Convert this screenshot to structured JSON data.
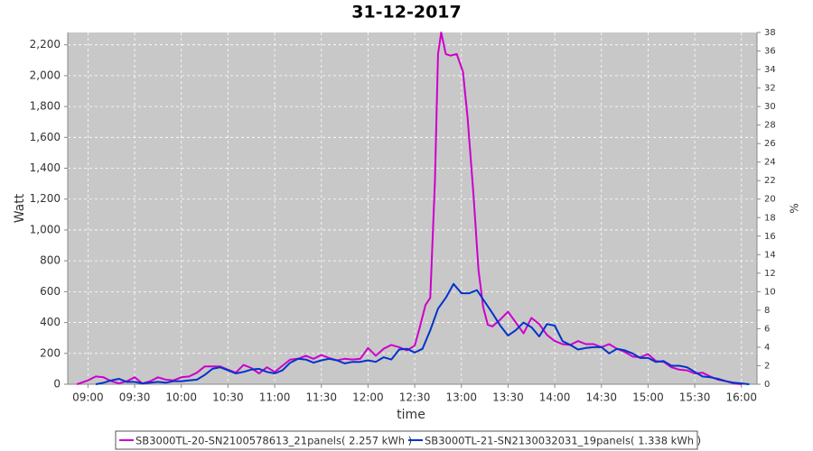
{
  "chart_data": {
    "type": "line",
    "title": "31-12-2017",
    "x_label": "time",
    "y_label": "Watt",
    "y2_label": "%",
    "xlim": [
      "08:47",
      "16:10"
    ],
    "xticks": [
      "09:00",
      "09:30",
      "10:00",
      "10:30",
      "11:00",
      "11:30",
      "12:00",
      "12:30",
      "13:00",
      "13:30",
      "14:00",
      "14:30",
      "15:00",
      "15:30",
      "16:00"
    ],
    "ylim": [
      0,
      2280
    ],
    "yticks": [
      0,
      200,
      400,
      600,
      800,
      {
        "value": 1000,
        "label": "1,000"
      },
      {
        "value": 1200,
        "label": "1,200"
      },
      {
        "value": 1400,
        "label": "1,400"
      },
      {
        "value": 1600,
        "label": "1,600"
      },
      {
        "value": 1800,
        "label": "1,800"
      },
      {
        "value": 2000,
        "label": "2,000"
      },
      {
        "value": 2200,
        "label": "2,200"
      }
    ],
    "y2lim": [
      0,
      38
    ],
    "y2ticks": [
      0,
      2,
      4,
      6,
      8,
      10,
      12,
      14,
      16,
      18,
      20,
      22,
      24,
      26,
      28,
      30,
      32,
      34,
      36,
      38
    ],
    "grid": true,
    "series": [
      {
        "name": "SB3000TL-20-SN2100578613_21panels( 2.257 kWh )",
        "color": "#cc00cc",
        "x": [
          "08:53",
          "09:00",
          "09:05",
          "09:10",
          "09:15",
          "09:20",
          "09:25",
          "09:30",
          "09:35",
          "09:40",
          "09:45",
          "09:50",
          "09:55",
          "10:00",
          "10:05",
          "10:10",
          "10:15",
          "10:20",
          "10:25",
          "10:30",
          "10:35",
          "10:40",
          "10:45",
          "10:50",
          "10:55",
          "11:00",
          "11:05",
          "11:10",
          "11:15",
          "11:20",
          "11:25",
          "11:30",
          "11:35",
          "11:40",
          "11:45",
          "11:50",
          "11:55",
          "12:00",
          "12:05",
          "12:10",
          "12:15",
          "12:20",
          "12:25",
          "12:30",
          "12:33",
          "12:37",
          "12:40",
          "12:43",
          "12:45",
          "12:47",
          "12:50",
          "12:53",
          "12:57",
          "13:01",
          "13:04",
          "13:08",
          "13:11",
          "13:14",
          "13:17",
          "13:20",
          "13:25",
          "13:30",
          "13:35",
          "13:40",
          "13:45",
          "13:50",
          "13:55",
          "14:00",
          "14:05",
          "14:10",
          "14:15",
          "14:20",
          "14:25",
          "14:30",
          "14:35",
          "14:40",
          "14:45",
          "14:50",
          "14:55",
          "15:00",
          "15:05",
          "15:10",
          "15:15",
          "15:20",
          "15:25",
          "15:30",
          "15:35",
          "15:40",
          "15:45",
          "15:50",
          "15:55",
          "16:00"
        ],
        "values": [
          0,
          25,
          50,
          45,
          20,
          5,
          20,
          45,
          5,
          20,
          45,
          30,
          25,
          45,
          50,
          75,
          115,
          115,
          115,
          95,
          75,
          125,
          105,
          70,
          110,
          80,
          120,
          160,
          165,
          185,
          165,
          190,
          170,
          155,
          165,
          160,
          165,
          235,
          185,
          230,
          255,
          240,
          220,
          250,
          360,
          515,
          560,
          1320,
          2140,
          2280,
          2140,
          2130,
          2140,
          2025,
          1730,
          1200,
          740,
          500,
          385,
          375,
          420,
          470,
          400,
          330,
          430,
          390,
          320,
          280,
          260,
          255,
          280,
          260,
          260,
          240,
          260,
          230,
          210,
          180,
          175,
          195,
          150,
          145,
          110,
          95,
          90,
          70,
          75,
          50,
          30,
          20,
          5,
          0
        ]
      },
      {
        "name": "SB3000TL-21-SN2130032031_19panels( 1.338 kWh )",
        "color": "#0033cc",
        "x": [
          "09:05",
          "09:10",
          "09:15",
          "09:20",
          "09:25",
          "09:30",
          "09:35",
          "09:40",
          "09:45",
          "09:50",
          "09:55",
          "10:00",
          "10:05",
          "10:10",
          "10:15",
          "10:20",
          "10:25",
          "10:30",
          "10:35",
          "10:40",
          "10:45",
          "10:50",
          "10:55",
          "11:00",
          "11:05",
          "11:10",
          "11:15",
          "11:20",
          "11:25",
          "11:30",
          "11:35",
          "11:40",
          "11:45",
          "11:50",
          "11:55",
          "12:00",
          "12:05",
          "12:10",
          "12:15",
          "12:20",
          "12:25",
          "12:30",
          "12:35",
          "12:40",
          "12:45",
          "12:50",
          "12:55",
          "13:00",
          "13:05",
          "13:10",
          "13:15",
          "13:20",
          "13:25",
          "13:30",
          "13:35",
          "13:40",
          "13:45",
          "13:50",
          "13:55",
          "14:00",
          "14:05",
          "14:10",
          "14:15",
          "14:20",
          "14:25",
          "14:30",
          "14:35",
          "14:40",
          "14:45",
          "14:50",
          "14:55",
          "15:00",
          "15:05",
          "15:10",
          "15:15",
          "15:20",
          "15:25",
          "15:30",
          "15:35",
          "15:40",
          "15:45",
          "15:50",
          "15:55",
          "16:00",
          "16:05"
        ],
        "values": [
          0,
          10,
          25,
          35,
          15,
          15,
          5,
          10,
          15,
          10,
          20,
          20,
          25,
          30,
          60,
          100,
          110,
          90,
          70,
          80,
          95,
          100,
          80,
          70,
          90,
          140,
          165,
          160,
          140,
          155,
          165,
          155,
          135,
          145,
          145,
          155,
          145,
          175,
          160,
          225,
          230,
          205,
          230,
          350,
          490,
          560,
          650,
          590,
          590,
          610,
          535,
          460,
          380,
          315,
          350,
          400,
          370,
          310,
          390,
          380,
          280,
          255,
          225,
          235,
          240,
          240,
          200,
          230,
          220,
          200,
          170,
          170,
          145,
          150,
          120,
          120,
          110,
          80,
          50,
          45,
          35,
          20,
          10,
          5,
          0
        ]
      }
    ]
  }
}
